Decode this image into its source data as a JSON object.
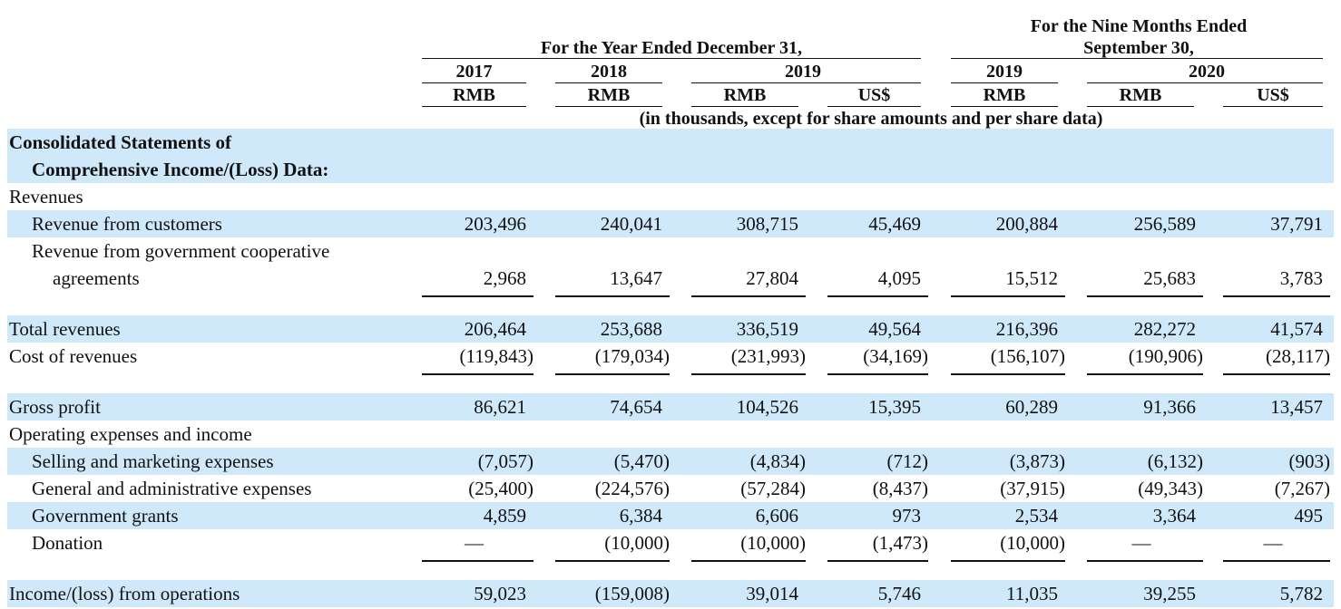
{
  "header": {
    "group_year": "For the Year Ended December 31,",
    "group_nine_line1": "For the Nine Months Ended",
    "group_nine_line2": "September 30,",
    "years": [
      "2017",
      "2018",
      "2019",
      "2019",
      "2020"
    ],
    "currencies": [
      "RMB",
      "RMB",
      "RMB",
      "US$",
      "RMB",
      "RMB",
      "US$"
    ],
    "note": "(in thousands, except for share amounts and per share data)"
  },
  "rows": [
    {
      "label": "Consolidated Statements of",
      "bold": true,
      "shaded": true,
      "values": []
    },
    {
      "label": "Comprehensive Income/(Loss) Data:",
      "bold": true,
      "shaded": true,
      "indent": 1,
      "values": []
    },
    {
      "label": "Revenues",
      "values": []
    },
    {
      "label": "Revenue from customers",
      "indent": 1,
      "shaded": true,
      "values": [
        "203,496",
        "240,041",
        "308,715",
        "45,469",
        "200,884",
        "256,589",
        "37,791"
      ]
    },
    {
      "label": "Revenue from government cooperative",
      "indent": 1,
      "values": []
    },
    {
      "label": "agreements",
      "indent": 2,
      "values": [
        "2,968",
        "13,647",
        "27,804",
        "4,095",
        "15,512",
        "25,683",
        "3,783"
      ],
      "underline": true
    },
    {
      "label": "Total revenues",
      "shaded": true,
      "values": [
        "206,464",
        "253,688",
        "336,519",
        "49,564",
        "216,396",
        "282,272",
        "41,574"
      ]
    },
    {
      "label": "Cost of revenues",
      "values": [
        "(119,843)",
        "(179,034)",
        "(231,993)",
        "(34,169)",
        "(156,107)",
        "(190,906)",
        "(28,117)"
      ],
      "underline": true
    },
    {
      "label": "Gross profit",
      "shaded": true,
      "values": [
        "86,621",
        "74,654",
        "104,526",
        "15,395",
        "60,289",
        "91,366",
        "13,457"
      ]
    },
    {
      "label": "Operating expenses and income",
      "values": []
    },
    {
      "label": "Selling and marketing expenses",
      "indent": 1,
      "shaded": true,
      "values": [
        "(7,057)",
        "(5,470)",
        "(4,834)",
        "(712)",
        "(3,873)",
        "(6,132)",
        "(903)"
      ]
    },
    {
      "label": "General and administrative expenses",
      "indent": 1,
      "values": [
        "(25,400)",
        "(224,576)",
        "(57,284)",
        "(8,437)",
        "(37,915)",
        "(49,343)",
        "(7,267)"
      ]
    },
    {
      "label": "Government grants",
      "indent": 1,
      "shaded": true,
      "values": [
        "4,859",
        "6,384",
        "6,606",
        "973",
        "2,534",
        "3,364",
        "495"
      ]
    },
    {
      "label": "Donation",
      "indent": 1,
      "values": [
        "—",
        "(10,000)",
        "(10,000)",
        "(1,473)",
        "(10,000)",
        "—",
        "—"
      ],
      "underline": true
    },
    {
      "label": "Income/(loss) from operations",
      "shaded": true,
      "values": [
        "59,023",
        "(159,008)",
        "39,014",
        "5,746",
        "11,035",
        "39,255",
        "5,782"
      ]
    }
  ]
}
